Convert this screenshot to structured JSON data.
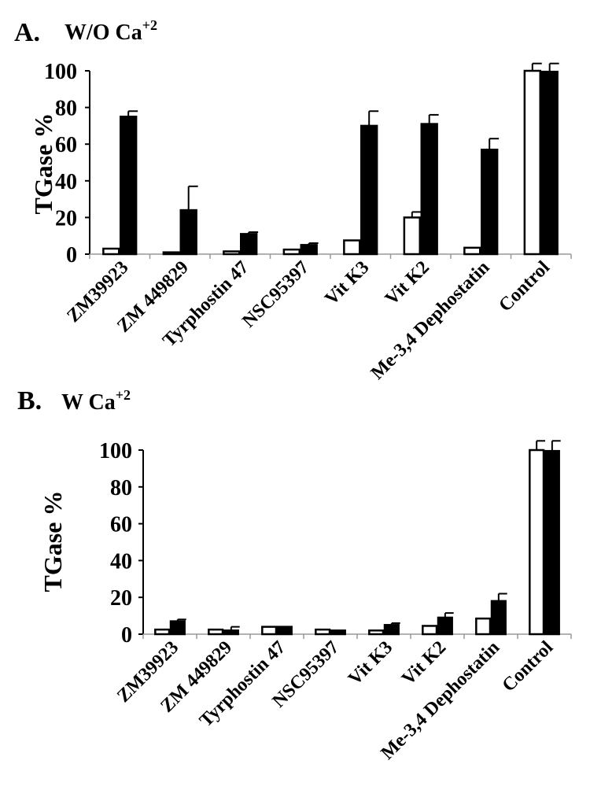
{
  "chart_data": [
    {
      "type": "bar",
      "panel_label": "A.",
      "condition": "W/O Ca",
      "condition_sup": "+2",
      "ylabel": "TGase %",
      "ylim": [
        0,
        100
      ],
      "yticks": [
        "0",
        "20",
        "40",
        "60",
        "80",
        "100"
      ],
      "grid": false,
      "categories": [
        "ZM39923",
        "ZM 449829",
        "Tyrphostin 47",
        "NSC95397",
        "Vit K3",
        "Vit K2",
        "Me-3,4 Dephostatin",
        "Control"
      ],
      "series": [
        {
          "fill": "#ffffff",
          "values": [
            3,
            1,
            1.5,
            2.5,
            7.5,
            20,
            3.5,
            100
          ],
          "errors": [
            0,
            0,
            0,
            0,
            0,
            3,
            0,
            4
          ]
        },
        {
          "fill": "#000000",
          "values": [
            75,
            24,
            11,
            5,
            70,
            71,
            57,
            99.5
          ],
          "errors": [
            3,
            13,
            1,
            1,
            8,
            5,
            6,
            4.5
          ]
        }
      ]
    },
    {
      "type": "bar",
      "panel_label": "B.",
      "condition": "W Ca",
      "condition_sup": "+2",
      "ylabel": "TGase %",
      "ylim": [
        0,
        100
      ],
      "yticks": [
        "0",
        "20",
        "40",
        "60",
        "80",
        "100"
      ],
      "grid": false,
      "categories": [
        "ZM39923",
        "ZM 449829",
        "Tyrphostin 47",
        "NSC95397",
        "Vit K3",
        "Vit K2",
        "Me-3,4 Dephostatin",
        "Control"
      ],
      "series": [
        {
          "fill": "#ffffff",
          "values": [
            2.5,
            2.5,
            4,
            2.5,
            2,
            4.5,
            8.5,
            100
          ],
          "errors": [
            0,
            0,
            0,
            0,
            0,
            0,
            0,
            5
          ]
        },
        {
          "fill": "#000000",
          "values": [
            7,
            2,
            4,
            2,
            5,
            9,
            18,
            99.5
          ],
          "errors": [
            1,
            2,
            0,
            0,
            1,
            2.5,
            4,
            5.5
          ]
        }
      ]
    }
  ]
}
